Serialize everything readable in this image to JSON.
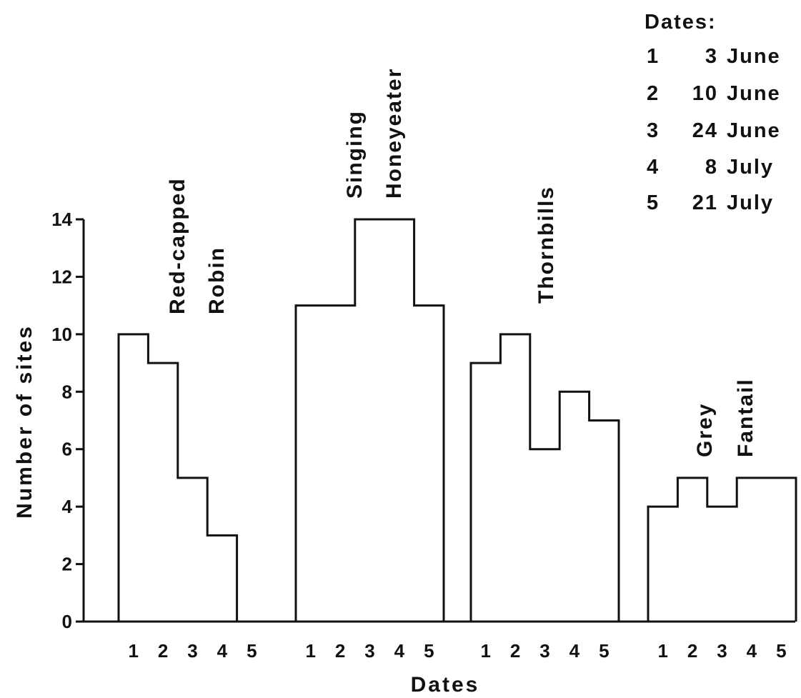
{
  "chart_data": {
    "type": "bar",
    "xlabel": "Dates",
    "ylabel": "Number of sites",
    "ylim": [
      0,
      14
    ],
    "yticks": [
      "0",
      "2",
      "4",
      "6",
      "8",
      "10",
      "12",
      "14"
    ],
    "categories": [
      "1",
      "2",
      "3",
      "4",
      "5"
    ],
    "series": [
      {
        "name": "Red-capped Robin",
        "name_lines": [
          "Red-capped",
          "Robin"
        ],
        "values": [
          10,
          9,
          5,
          3,
          0
        ]
      },
      {
        "name": "Singing Honeyeater",
        "name_lines": [
          "Singing",
          "Honeyeater"
        ],
        "values": [
          11,
          11,
          14,
          14,
          11
        ]
      },
      {
        "name": "Thornbills",
        "name_lines": [
          "Thornbills"
        ],
        "values": [
          9,
          10,
          6,
          8,
          7
        ]
      },
      {
        "name": "Grey Fantail",
        "name_lines": [
          "Grey",
          "Fantail"
        ],
        "values": [
          4,
          5,
          4,
          5,
          5
        ]
      }
    ],
    "legend": {
      "title": "Dates:",
      "position": "top-right",
      "entries": [
        {
          "key": "1",
          "date": "3 June"
        },
        {
          "key": "2",
          "date": "10 June"
        },
        {
          "key": "3",
          "date": "24 June"
        },
        {
          "key": "4",
          "date": "8 July"
        },
        {
          "key": "5",
          "date": "21 July"
        }
      ]
    },
    "colors": {
      "line": "#111111",
      "background": "#ffffff"
    }
  }
}
